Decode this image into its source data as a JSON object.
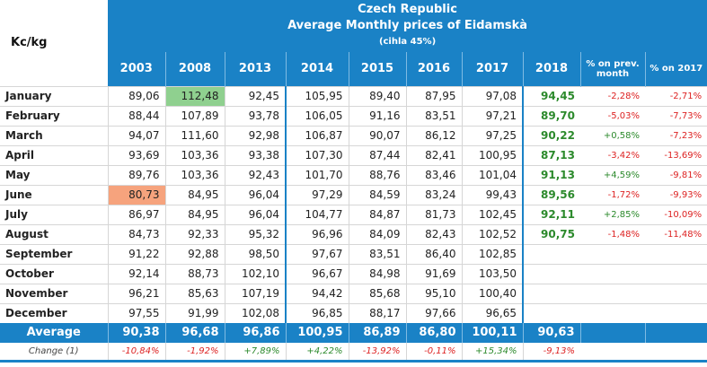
{
  "unit": "Kc/kg",
  "title": {
    "line1": "Czech Republic",
    "line2": "Average Monthly prices of Eidamskà",
    "line3": "(cihla 45%)"
  },
  "years": [
    "2003",
    "2008",
    "2013",
    "2014",
    "2015",
    "2016",
    "2017",
    "2018"
  ],
  "pct_headers": {
    "prev_month": "% on prev. month",
    "on_2017": "% on 2017"
  },
  "rows": [
    {
      "month": "January",
      "values": [
        "89,06",
        "112,48",
        "92,45",
        "105,95",
        "89,40",
        "87,95",
        "97,08",
        "94,45"
      ],
      "pm": "-2,28%",
      "y17": "-2,71%"
    },
    {
      "month": "February",
      "values": [
        "88,44",
        "107,89",
        "93,78",
        "106,05",
        "91,16",
        "83,51",
        "97,21",
        "89,70"
      ],
      "pm": "-5,03%",
      "y17": "-7,73%"
    },
    {
      "month": "March",
      "values": [
        "94,07",
        "111,60",
        "92,98",
        "106,87",
        "90,07",
        "86,12",
        "97,25",
        "90,22"
      ],
      "pm": "+0,58%",
      "y17": "-7,23%"
    },
    {
      "month": "April",
      "values": [
        "93,69",
        "103,36",
        "93,38",
        "107,30",
        "87,44",
        "82,41",
        "100,95",
        "87,13"
      ],
      "pm": "-3,42%",
      "y17": "-13,69%"
    },
    {
      "month": "May",
      "values": [
        "89,76",
        "103,36",
        "92,43",
        "101,70",
        "88,76",
        "83,46",
        "101,04",
        "91,13"
      ],
      "pm": "+4,59%",
      "y17": "-9,81%"
    },
    {
      "month": "June",
      "values": [
        "80,73",
        "84,95",
        "96,04",
        "97,29",
        "84,59",
        "83,24",
        "99,43",
        "89,56"
      ],
      "pm": "-1,72%",
      "y17": "-9,93%"
    },
    {
      "month": "July",
      "values": [
        "86,97",
        "84,95",
        "96,04",
        "104,77",
        "84,87",
        "81,73",
        "102,45",
        "92,11"
      ],
      "pm": "+2,85%",
      "y17": "-10,09%"
    },
    {
      "month": "August",
      "values": [
        "84,73",
        "92,33",
        "95,32",
        "96,96",
        "84,09",
        "82,43",
        "102,52",
        "90,75"
      ],
      "pm": "-1,48%",
      "y17": "-11,48%"
    },
    {
      "month": "September",
      "values": [
        "91,22",
        "92,88",
        "98,50",
        "97,67",
        "83,51",
        "86,40",
        "102,85",
        ""
      ],
      "pm": "",
      "y17": ""
    },
    {
      "month": "October",
      "values": [
        "92,14",
        "88,73",
        "102,10",
        "96,67",
        "84,98",
        "91,69",
        "103,50",
        ""
      ],
      "pm": "",
      "y17": ""
    },
    {
      "month": "November",
      "values": [
        "96,21",
        "85,63",
        "107,19",
        "94,42",
        "85,68",
        "95,10",
        "100,40",
        ""
      ],
      "pm": "",
      "y17": ""
    },
    {
      "month": "December",
      "values": [
        "97,55",
        "91,99",
        "102,08",
        "96,85",
        "88,17",
        "97,66",
        "96,65",
        ""
      ],
      "pm": "",
      "y17": ""
    }
  ],
  "average": {
    "label": "Average",
    "values": [
      "90,38",
      "96,68",
      "96,86",
      "100,95",
      "86,89",
      "86,80",
      "100,11",
      "90,63"
    ]
  },
  "change": {
    "label": "Change (1)",
    "values": [
      "-10,84%",
      "-1,92%",
      "+7,89%",
      "+4,22%",
      "-13,92%",
      "-0,11%",
      "+15,34%",
      "-9,13%"
    ]
  },
  "highlights": {
    "max": "112,48",
    "min": "80,73"
  },
  "colors": {
    "header_blue": "#1a82c6",
    "positive": "#2c8a2c",
    "negative": "#dd2222",
    "max_highlight": "#8fd08f",
    "min_highlight": "#f6a37d"
  }
}
